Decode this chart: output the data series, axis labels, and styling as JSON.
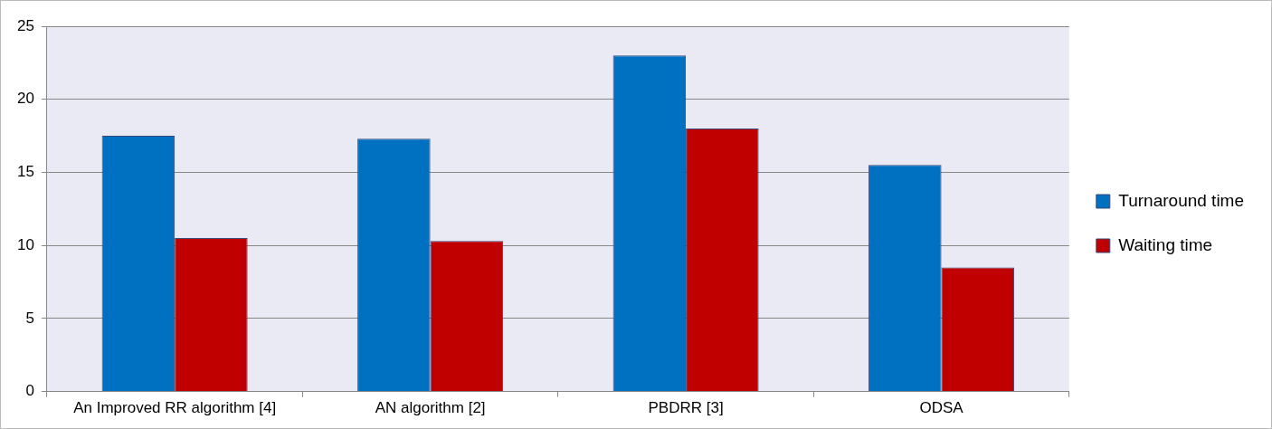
{
  "chart_data": {
    "type": "bar",
    "categories": [
      "An Improved RR algorithm [4]",
      "AN algorithm [2]",
      "PBDRR [3]",
      "ODSA"
    ],
    "series": [
      {
        "name": "Turnaround time",
        "color": "#0070c0",
        "values": [
          17.5,
          17.3,
          23,
          15.5
        ]
      },
      {
        "name": "Waiting time",
        "color": "#c00000",
        "values": [
          10.5,
          10.3,
          18,
          8.5
        ]
      }
    ],
    "ylim": [
      0,
      25
    ],
    "yticks": [
      0,
      5,
      10,
      15,
      20,
      25
    ],
    "grid": "y",
    "legend": "right"
  }
}
